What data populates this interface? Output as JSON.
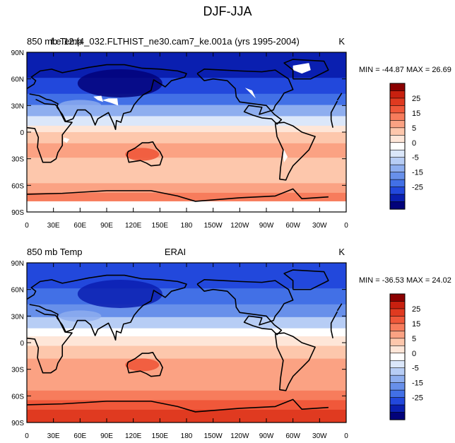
{
  "figure_title": "DJF-JJA",
  "panels": [
    {
      "left_label": "850 mb Temp",
      "center_label": "f.e.12.f4_032.FLTHIST_ne30.cam7_ke.001a (yrs 1995-2004)",
      "right_label": "K",
      "min_max_text": "MIN = -44.87 MAX =  26.69"
    },
    {
      "left_label": "850 mb Temp",
      "center_label": "ERAI",
      "right_label": "K",
      "min_max_text": "MIN = -36.53 MAX =  24.02"
    }
  ],
  "lat_ticks": [
    "90N",
    "60N",
    "30N",
    "0",
    "30S",
    "60S",
    "90S"
  ],
  "lon_ticks": [
    "0",
    "30E",
    "60E",
    "90E",
    "120E",
    "150E",
    "180",
    "150W",
    "120W",
    "90W",
    "60W",
    "30W",
    "0"
  ],
  "colorbar": {
    "labels": [
      "25",
      "15",
      "5",
      "0",
      "-5",
      "-15",
      "-25"
    ],
    "colors": [
      "#8b0000",
      "#c8200f",
      "#e03a20",
      "#f0583a",
      "#f77c5c",
      "#fba283",
      "#fdc7ac",
      "#fee6d8",
      "#ffffff",
      "#dbe7fa",
      "#b7cdf5",
      "#8eaeef",
      "#6890ea",
      "#4270e6",
      "#2248dc",
      "#0a1fb0",
      "#02027a"
    ]
  }
}
